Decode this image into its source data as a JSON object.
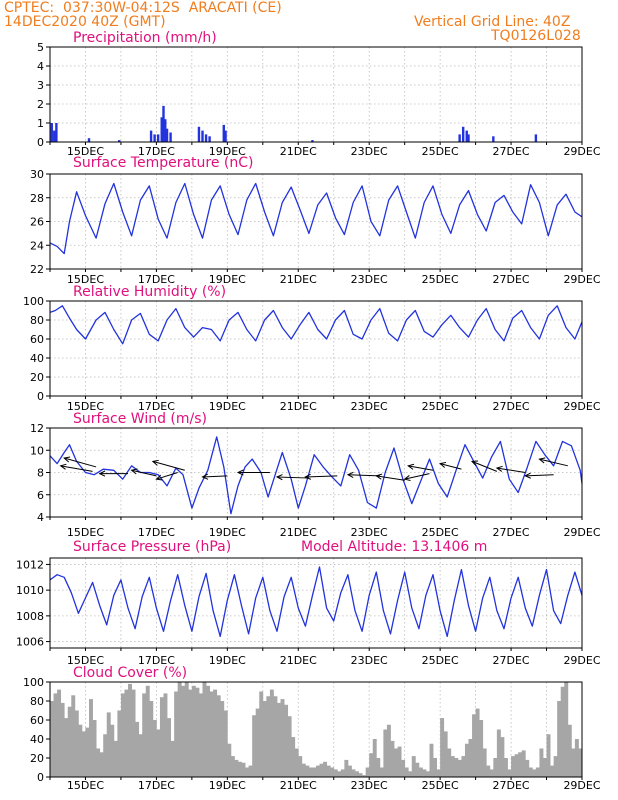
{
  "header": {
    "line1_left": "CPTEC:  037:30W-04:12S  ARACATI (CE)",
    "line2_left": "14DEC2020 40Z (GMT)",
    "line1_right": "Vertical Grid Line: 40Z",
    "line2_right": "TQ0126L028"
  },
  "colors": {
    "header": "#f07d1e",
    "title": "#e0107e",
    "line": "#2233dd",
    "cloud": "#a6a6a6"
  },
  "chart_data": [
    {
      "type": "bar",
      "title": "Precipitation (mm/h)",
      "ylim": [
        0,
        5
      ],
      "yticks": [
        0,
        1,
        2,
        3,
        4,
        5
      ],
      "xticklabels": [
        "15DEC",
        "17DEC",
        "19DEC",
        "21DEC",
        "23DEC",
        "25DEC",
        "27DEC",
        "29DEC"
      ],
      "x": [
        14.05,
        14.12,
        14.18,
        15.1,
        15.95,
        16.85,
        16.95,
        17.05,
        17.15,
        17.2,
        17.25,
        17.3,
        17.4,
        18.2,
        18.3,
        18.4,
        18.5,
        18.9,
        18.95,
        21.4,
        25.55,
        25.65,
        25.75,
        25.8,
        26.5,
        27.7
      ],
      "values": [
        1.0,
        0.6,
        1.0,
        0.2,
        0.1,
        0.6,
        0.4,
        0.4,
        1.3,
        1.9,
        1.2,
        0.7,
        0.5,
        0.8,
        0.6,
        0.4,
        0.3,
        0.9,
        0.6,
        0.1,
        0.4,
        0.8,
        0.6,
        0.4,
        0.3,
        0.4
      ],
      "grid": true
    },
    {
      "type": "line",
      "title": "Surface Temperature (nC)",
      "ylim": [
        22,
        30
      ],
      "yticks": [
        22,
        24,
        26,
        28,
        30
      ],
      "xticklabels": [
        "15DEC",
        "17DEC",
        "19DEC",
        "21DEC",
        "23DEC",
        "25DEC",
        "27DEC",
        "29DEC"
      ],
      "series": [
        {
          "x": [
            14.0,
            14.2,
            14.4,
            14.55,
            14.75,
            15.0,
            15.3,
            15.55,
            15.8,
            16.05,
            16.3,
            16.55,
            16.8,
            17.05,
            17.3,
            17.55,
            17.8,
            18.05,
            18.3,
            18.55,
            18.8,
            19.05,
            19.3,
            19.55,
            19.8,
            20.05,
            20.3,
            20.55,
            20.8,
            21.05,
            21.3,
            21.55,
            21.8,
            22.05,
            22.3,
            22.55,
            22.8,
            23.05,
            23.3,
            23.55,
            23.8,
            24.05,
            24.3,
            24.55,
            24.8,
            25.05,
            25.3,
            25.55,
            25.8,
            26.05,
            26.3,
            26.55,
            26.8,
            27.05,
            27.3,
            27.55,
            27.8,
            28.05,
            28.3,
            28.55,
            28.8,
            29.0
          ],
          "values": [
            24.2,
            23.9,
            23.3,
            26.0,
            28.5,
            26.5,
            24.6,
            27.5,
            29.2,
            26.8,
            24.8,
            27.8,
            29.0,
            26.2,
            24.6,
            27.6,
            29.2,
            26.6,
            24.6,
            27.8,
            29.0,
            26.6,
            24.9,
            27.8,
            29.2,
            26.8,
            24.8,
            27.6,
            28.9,
            27.0,
            25.0,
            27.4,
            28.4,
            26.3,
            24.9,
            27.6,
            29.0,
            26.0,
            24.8,
            27.8,
            29.0,
            26.8,
            24.6,
            27.6,
            29.0,
            26.6,
            25.0,
            27.4,
            28.6,
            26.6,
            25.2,
            27.6,
            28.2,
            26.8,
            25.8,
            29.1,
            27.6,
            24.8,
            27.4,
            28.3,
            26.8,
            26.4
          ]
        }
      ],
      "grid": true
    },
    {
      "type": "line",
      "title": "Relative Humidity (%)",
      "ylim": [
        0,
        100
      ],
      "yticks": [
        0,
        20,
        40,
        60,
        80,
        100
      ],
      "xticklabels": [
        "15DEC",
        "17DEC",
        "19DEC",
        "21DEC",
        "23DEC",
        "25DEC",
        "27DEC",
        "29DEC"
      ],
      "series": [
        {
          "x": [
            14.0,
            14.15,
            14.35,
            14.55,
            14.75,
            15.0,
            15.3,
            15.55,
            15.8,
            16.05,
            16.3,
            16.55,
            16.8,
            17.05,
            17.3,
            17.55,
            17.8,
            18.05,
            18.3,
            18.55,
            18.8,
            19.05,
            19.3,
            19.55,
            19.8,
            20.05,
            20.3,
            20.55,
            20.8,
            21.05,
            21.3,
            21.55,
            21.8,
            22.05,
            22.3,
            22.55,
            22.8,
            23.05,
            23.3,
            23.55,
            23.8,
            24.05,
            24.3,
            24.55,
            24.8,
            25.05,
            25.3,
            25.55,
            25.8,
            26.05,
            26.3,
            26.55,
            26.8,
            27.05,
            27.3,
            27.55,
            27.8,
            28.05,
            28.3,
            28.55,
            28.8,
            29.0
          ],
          "values": [
            88,
            90,
            95,
            82,
            70,
            60,
            80,
            88,
            70,
            55,
            80,
            87,
            65,
            58,
            80,
            92,
            72,
            62,
            72,
            70,
            58,
            80,
            88,
            70,
            58,
            80,
            90,
            72,
            60,
            75,
            88,
            70,
            60,
            80,
            90,
            65,
            60,
            80,
            92,
            66,
            58,
            80,
            90,
            68,
            62,
            75,
            85,
            72,
            62,
            80,
            92,
            70,
            58,
            82,
            90,
            72,
            60,
            85,
            95,
            72,
            60,
            78
          ]
        }
      ],
      "grid": true
    },
    {
      "type": "line",
      "title": "Surface Wind (m/s)",
      "ylim": [
        4,
        12
      ],
      "yticks": [
        4,
        6,
        8,
        10,
        12
      ],
      "xticklabels": [
        "15DEC",
        "17DEC",
        "19DEC",
        "21DEC",
        "23DEC",
        "25DEC",
        "27DEC",
        "29DEC"
      ],
      "series": [
        {
          "x": [
            14.0,
            14.2,
            14.4,
            14.55,
            14.75,
            15.0,
            15.25,
            15.5,
            15.8,
            16.05,
            16.3,
            16.55,
            16.8,
            17.05,
            17.3,
            17.55,
            17.75,
            18.0,
            18.2,
            18.45,
            18.7,
            18.9,
            19.1,
            19.3,
            19.5,
            19.7,
            19.95,
            20.15,
            20.35,
            20.55,
            20.8,
            21.0,
            21.2,
            21.45,
            21.7,
            21.95,
            22.2,
            22.45,
            22.7,
            22.95,
            23.2,
            23.45,
            23.7,
            23.95,
            24.2,
            24.45,
            24.7,
            24.95,
            25.2,
            25.45,
            25.7,
            25.95,
            26.2,
            26.45,
            26.7,
            26.95,
            27.2,
            27.45,
            27.7,
            27.95,
            28.2,
            28.45,
            28.7,
            28.95,
            29.0
          ],
          "values": [
            9.5,
            8.8,
            9.8,
            10.5,
            9.0,
            8.0,
            7.8,
            8.3,
            8.2,
            7.4,
            8.6,
            8.0,
            8.0,
            7.8,
            6.8,
            8.4,
            7.8,
            4.8,
            6.6,
            8.2,
            11.2,
            8.5,
            4.3,
            6.8,
            8.5,
            9.2,
            8.0,
            5.8,
            7.8,
            9.8,
            7.4,
            4.8,
            6.8,
            9.6,
            8.5,
            7.6,
            6.8,
            9.6,
            8.2,
            5.3,
            4.8,
            8.0,
            10.2,
            7.4,
            5.2,
            7.2,
            9.2,
            7.0,
            5.8,
            8.2,
            10.5,
            9.0,
            7.5,
            9.4,
            10.8,
            7.4,
            6.2,
            8.4,
            10.8,
            9.6,
            8.6,
            10.8,
            10.4,
            8.2,
            7.0
          ]
        }
      ],
      "grid": true
    },
    {
      "type": "line",
      "title": "Surface Pressure (hPa)",
      "annotation": "Model Altitude: 13.1406 m",
      "ylim": [
        1005.5,
        1012.5
      ],
      "yticks": [
        1006,
        1008,
        1010,
        1012
      ],
      "xticklabels": [
        "15DEC",
        "17DEC",
        "19DEC",
        "21DEC",
        "23DEC",
        "25DEC",
        "27DEC",
        "29DEC"
      ],
      "series": [
        {
          "x": [
            14.0,
            14.2,
            14.4,
            14.6,
            14.8,
            15.0,
            15.2,
            15.4,
            15.6,
            15.8,
            16.0,
            16.2,
            16.4,
            16.6,
            16.8,
            17.0,
            17.2,
            17.4,
            17.6,
            17.8,
            18.0,
            18.2,
            18.4,
            18.6,
            18.8,
            19.0,
            19.2,
            19.4,
            19.6,
            19.8,
            20.0,
            20.2,
            20.4,
            20.6,
            20.8,
            21.0,
            21.2,
            21.4,
            21.6,
            21.8,
            22.0,
            22.2,
            22.4,
            22.6,
            22.8,
            23.0,
            23.2,
            23.4,
            23.6,
            23.8,
            24.0,
            24.2,
            24.4,
            24.6,
            24.8,
            25.0,
            25.2,
            25.4,
            25.6,
            25.8,
            26.0,
            26.2,
            26.4,
            26.6,
            26.8,
            27.0,
            27.2,
            27.4,
            27.6,
            27.8,
            28.0,
            28.2,
            28.4,
            28.6,
            28.8,
            29.0
          ],
          "values": [
            1010.8,
            1011.2,
            1011.0,
            1009.8,
            1008.2,
            1009.4,
            1010.6,
            1008.8,
            1007.3,
            1009.6,
            1010.8,
            1008.6,
            1007.0,
            1009.5,
            1011.0,
            1008.6,
            1006.8,
            1009.2,
            1011.2,
            1008.8,
            1006.8,
            1009.5,
            1011.3,
            1008.4,
            1006.4,
            1009.2,
            1011.2,
            1008.8,
            1006.6,
            1009.4,
            1011.0,
            1008.4,
            1006.8,
            1009.5,
            1011.0,
            1008.6,
            1007.2,
            1009.6,
            1011.8,
            1008.6,
            1007.6,
            1009.8,
            1011.2,
            1008.4,
            1006.8,
            1009.6,
            1011.4,
            1008.4,
            1006.6,
            1009.2,
            1011.4,
            1008.6,
            1007.0,
            1009.6,
            1011.2,
            1008.4,
            1006.4,
            1009.2,
            1011.6,
            1008.8,
            1006.8,
            1009.4,
            1011.0,
            1008.4,
            1007.0,
            1009.4,
            1011.0,
            1008.6,
            1007.2,
            1009.6,
            1011.6,
            1008.4,
            1007.4,
            1009.6,
            1011.4,
            1009.6
          ]
        }
      ],
      "grid": true
    },
    {
      "type": "bar",
      "title": "Cloud Cover (%)",
      "ylim": [
        0,
        100
      ],
      "yticks": [
        0,
        20,
        40,
        60,
        80,
        100
      ],
      "xticklabels": [
        "15DEC",
        "17DEC",
        "19DEC",
        "21DEC",
        "23DEC",
        "25DEC",
        "27DEC",
        "29DEC"
      ],
      "x": [
        14.0,
        14.1,
        14.2,
        14.3,
        14.4,
        14.5,
        14.6,
        14.7,
        14.8,
        14.9,
        15.0,
        15.1,
        15.2,
        15.3,
        15.4,
        15.5,
        15.6,
        15.7,
        15.8,
        15.9,
        16.0,
        16.1,
        16.2,
        16.3,
        16.4,
        16.5,
        16.6,
        16.7,
        16.8,
        16.9,
        17.0,
        17.1,
        17.2,
        17.3,
        17.4,
        17.5,
        17.6,
        17.7,
        17.8,
        17.9,
        18.0,
        18.1,
        18.2,
        18.3,
        18.4,
        18.5,
        18.6,
        18.7,
        18.8,
        18.9,
        19.0,
        19.1,
        19.2,
        19.3,
        19.4,
        19.5,
        19.6,
        19.7,
        19.8,
        19.9,
        20.0,
        20.1,
        20.2,
        20.3,
        20.4,
        20.5,
        20.6,
        20.7,
        20.8,
        20.9,
        21.0,
        21.1,
        21.2,
        21.3,
        21.4,
        21.5,
        21.6,
        21.7,
        21.8,
        21.9,
        22.0,
        22.1,
        22.2,
        22.3,
        22.4,
        22.5,
        22.6,
        22.7,
        22.8,
        22.9,
        23.0,
        23.1,
        23.2,
        23.3,
        23.4,
        23.5,
        23.6,
        23.7,
        23.8,
        23.9,
        24.0,
        24.1,
        24.2,
        24.3,
        24.4,
        24.5,
        24.6,
        24.7,
        24.8,
        24.9,
        25.0,
        25.1,
        25.2,
        25.3,
        25.4,
        25.5,
        25.6,
        25.7,
        25.8,
        25.9,
        26.0,
        26.1,
        26.2,
        26.3,
        26.4,
        26.5,
        26.6,
        26.7,
        26.8,
        26.9,
        27.0,
        27.1,
        27.2,
        27.3,
        27.4,
        27.5,
        27.6,
        27.7,
        27.8,
        27.9,
        28.0,
        28.1,
        28.2,
        28.3,
        28.4,
        28.5,
        28.6,
        28.7,
        28.8,
        28.9
      ],
      "values": [
        80,
        88,
        92,
        78,
        62,
        74,
        86,
        70,
        55,
        48,
        52,
        82,
        60,
        30,
        26,
        45,
        68,
        55,
        38,
        70,
        88,
        92,
        98,
        92,
        58,
        45,
        88,
        96,
        80,
        60,
        50,
        84,
        88,
        62,
        38,
        90,
        100,
        96,
        100,
        92,
        96,
        94,
        88,
        100,
        96,
        90,
        92,
        86,
        80,
        70,
        35,
        22,
        18,
        16,
        15,
        10,
        12,
        65,
        72,
        90,
        80,
        85,
        92,
        85,
        78,
        82,
        76,
        64,
        42,
        30,
        22,
        14,
        12,
        10,
        10,
        12,
        14,
        16,
        12,
        10,
        8,
        6,
        8,
        18,
        12,
        8,
        6,
        4,
        2,
        10,
        25,
        40,
        20,
        10,
        50,
        55,
        38,
        30,
        32,
        18,
        10,
        6,
        22,
        15,
        10,
        8,
        6,
        35,
        20,
        8,
        62,
        48,
        30,
        22,
        20,
        18,
        22,
        35,
        40,
        66,
        72,
        60,
        30,
        12,
        8,
        20,
        50,
        42,
        20,
        8,
        22,
        24,
        26,
        28,
        18,
        10,
        8,
        10,
        30,
        20,
        45,
        12,
        22,
        80,
        95,
        100,
        55,
        30,
        40,
        30
      ]
    }
  ]
}
